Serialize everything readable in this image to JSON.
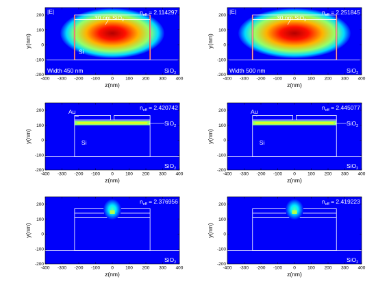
{
  "chart_data": [
    {
      "type": "heatmap",
      "colormap": "jet",
      "xlabel": "z(nm)",
      "ylabel": "y(nm)",
      "xlim": [
        -400,
        400
      ],
      "ylim": [
        -200,
        250
      ],
      "xticks": [
        "-400",
        "-300",
        "-200",
        "-100",
        "0",
        "100",
        "200",
        "300",
        "400"
      ],
      "yticks": [
        "-200",
        "-100",
        "0",
        "100",
        "200"
      ],
      "field_label": "|E|",
      "neff_prefix": "n",
      "neff_sub": "eff",
      "neff_value": "= 2.114297",
      "oxide_label": "30 nm SiO",
      "oxide_sub": "2",
      "width_label": "Width 450 nm",
      "si_label": "Si",
      "cladding_label": "SiO",
      "cladding_sub": "2",
      "mode": "photonic",
      "core_width_nm": 450,
      "oxide_thickness_nm": 30
    },
    {
      "type": "heatmap",
      "colormap": "jet",
      "xlabel": "z(nm)",
      "ylabel": "y(nm)",
      "xlim": [
        -400,
        400
      ],
      "ylim": [
        -200,
        250
      ],
      "xticks": [
        "-400",
        "-300",
        "-200",
        "-100",
        "0",
        "100",
        "200",
        "300",
        "400"
      ],
      "yticks": [
        "-200",
        "-100",
        "0",
        "100",
        "200"
      ],
      "field_label": "|E|",
      "neff_prefix": "n",
      "neff_sub": "eff",
      "neff_value": "= 2.251845",
      "oxide_label": "30 nm SiO",
      "oxide_sub": "2",
      "width_label": "Width 500 nm",
      "si_label": "",
      "cladding_label": "SiO",
      "cladding_sub": "2",
      "mode": "photonic",
      "core_width_nm": 500,
      "oxide_thickness_nm": 30
    },
    {
      "type": "heatmap",
      "colormap": "jet",
      "xlabel": "z(nm)",
      "ylabel": "y(nm)",
      "xlim": [
        -400,
        400
      ],
      "ylim": [
        -200,
        250
      ],
      "xticks": [
        "-400",
        "-300",
        "-200",
        "-100",
        "0",
        "100",
        "200",
        "300",
        "400"
      ],
      "yticks": [
        "-200",
        "-100",
        "0",
        "100",
        "200"
      ],
      "neff_prefix": "n",
      "neff_sub": "eff",
      "neff_value": "= 2.420742",
      "au_label": "Au",
      "oxide_label": "SiO",
      "oxide_sub": "2",
      "si_label": "Si",
      "cladding_label": "SiO",
      "cladding_sub": "2",
      "mode": "plasmonic-thin",
      "core_width_nm": 450
    },
    {
      "type": "heatmap",
      "colormap": "jet",
      "xlabel": "z(nm)",
      "ylabel": "y(nm)",
      "xlim": [
        -400,
        400
      ],
      "ylim": [
        -200,
        250
      ],
      "xticks": [
        "-400",
        "-300",
        "-200",
        "-100",
        "0",
        "100",
        "200",
        "300",
        "400"
      ],
      "yticks": [
        "-200",
        "-100",
        "0",
        "100",
        "200"
      ],
      "neff_prefix": "n",
      "neff_sub": "eff",
      "neff_value": "= 2.445077",
      "au_label": "Au",
      "oxide_label": "SiO",
      "oxide_sub": "2",
      "si_label": "Si",
      "cladding_label": "SiO",
      "cladding_sub": "2",
      "mode": "plasmonic-thin",
      "core_width_nm": 500
    },
    {
      "type": "heatmap",
      "colormap": "jet",
      "xlabel": "z(nm)",
      "ylabel": "y(nm)",
      "xlim": [
        -400,
        400
      ],
      "ylim": [
        -200,
        250
      ],
      "xticks": [
        "-400",
        "-300",
        "-200",
        "-100",
        "0",
        "100",
        "200",
        "300",
        "400"
      ],
      "yticks": [
        "-200",
        "-100",
        "0",
        "100",
        "200"
      ],
      "neff_prefix": "n",
      "neff_sub": "eff",
      "neff_value": "= 2.376956",
      "cladding_label": "SiO",
      "cladding_sub": "2",
      "mode": "plasmonic-gap",
      "core_width_nm": 450
    },
    {
      "type": "heatmap",
      "colormap": "jet",
      "xlabel": "z(nm)",
      "ylabel": "y(nm)",
      "xlim": [
        -400,
        400
      ],
      "ylim": [
        -200,
        250
      ],
      "xticks": [
        "-400",
        "-300",
        "-200",
        "-100",
        "0",
        "100",
        "200",
        "300",
        "400"
      ],
      "yticks": [
        "-200",
        "-100",
        "0",
        "100",
        "200"
      ],
      "neff_prefix": "n",
      "neff_sub": "eff",
      "neff_value": "= 2.419223",
      "cladding_label": "SiO",
      "cladding_sub": "2",
      "mode": "plasmonic-gap",
      "core_width_nm": 500
    }
  ]
}
